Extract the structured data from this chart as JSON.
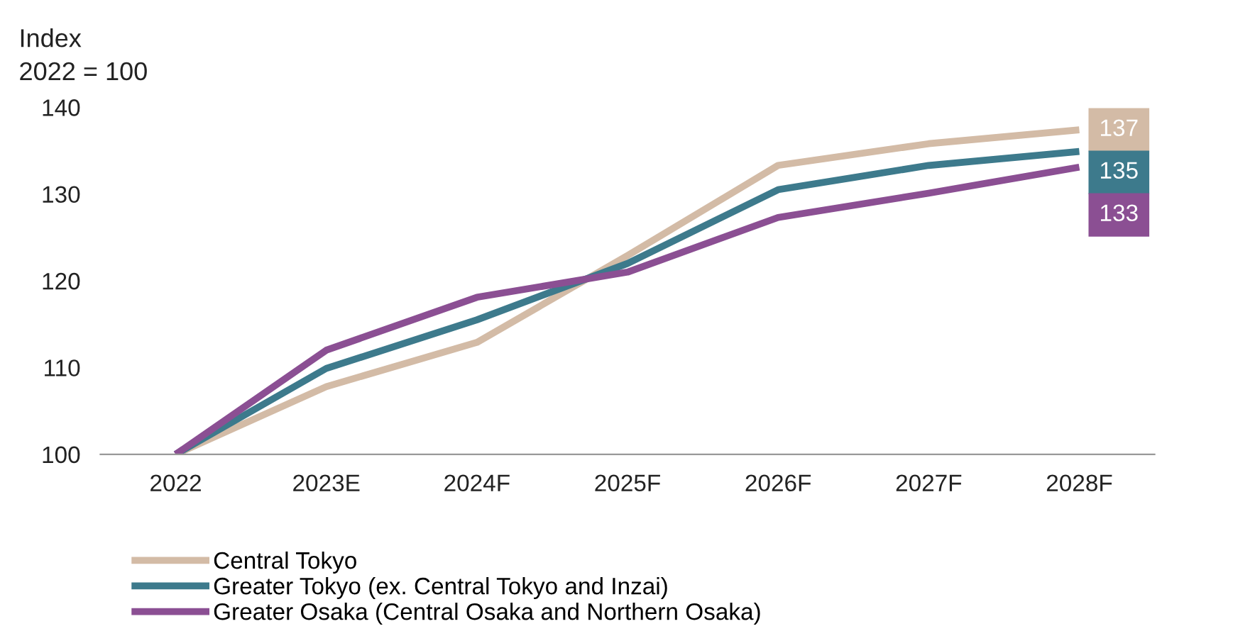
{
  "chart_data": {
    "type": "line",
    "ylabel": "Index\n2022 = 100",
    "categories": [
      "2022",
      "2023E",
      "2024F",
      "2025F",
      "2026F",
      "2027F",
      "2028F"
    ],
    "series": [
      {
        "name": "Central Tokyo",
        "color": "#d3bba6",
        "values": [
          100,
          107.8,
          112.9,
          122.9,
          133.3,
          135.8,
          137.4
        ],
        "value_labels": [
          null,
          null,
          null,
          null,
          null,
          null,
          "137"
        ]
      },
      {
        "name": "Greater Tokyo (ex. Central Tokyo and Inzai)",
        "color": "#3d7a8c",
        "values": [
          100,
          109.9,
          115.5,
          122.0,
          130.5,
          133.3,
          134.9
        ],
        "value_labels": [
          null,
          null,
          null,
          null,
          null,
          null,
          "135"
        ]
      },
      {
        "name": "Greater Osaka (Central Osaka and Northern Osaka)",
        "color": "#8b4f93",
        "values": [
          100,
          112.0,
          118.1,
          121.0,
          127.3,
          130.1,
          133.1
        ],
        "value_labels": [
          null,
          null,
          null,
          null,
          null,
          null,
          "133"
        ]
      }
    ],
    "ylim": [
      100,
      140
    ],
    "yticks": [
      100,
      110,
      120,
      130,
      140
    ],
    "grid": false,
    "legend": "bottom left",
    "line_style": "solid",
    "marker": "none"
  }
}
